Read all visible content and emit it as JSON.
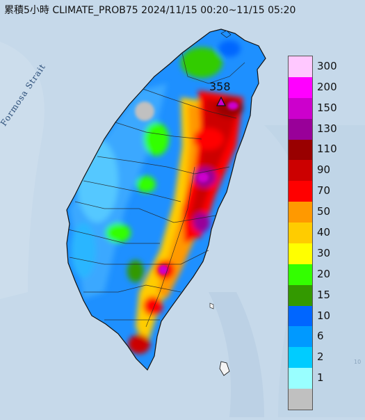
{
  "title": "累積5小時 CLIMATE_PROB75 2024/11/15 00:20~11/15 05:20",
  "strait_label": "Formosa Strait",
  "peak_value": "358",
  "legend": {
    "items": [
      {
        "label": "300",
        "color": "#ffc8ff"
      },
      {
        "label": "200",
        "color": "#ff00ff"
      },
      {
        "label": "150",
        "color": "#cc00cc"
      },
      {
        "label": "130",
        "color": "#990099"
      },
      {
        "label": "110",
        "color": "#990000"
      },
      {
        "label": "90",
        "color": "#cc0000"
      },
      {
        "label": "70",
        "color": "#ff0000"
      },
      {
        "label": "50",
        "color": "#ff9900"
      },
      {
        "label": "40",
        "color": "#ffcc00"
      },
      {
        "label": "30",
        "color": "#ffff00"
      },
      {
        "label": "20",
        "color": "#33ff00"
      },
      {
        "label": "15",
        "color": "#339900"
      },
      {
        "label": "10",
        "color": "#0066ff"
      },
      {
        "label": "6",
        "color": "#0099ff"
      },
      {
        "label": "2",
        "color": "#00ccff"
      },
      {
        "label": "1",
        "color": "#99ffff"
      },
      {
        "label": "",
        "color": "#c0c0c0"
      }
    ]
  },
  "corner_tick": "10"
}
